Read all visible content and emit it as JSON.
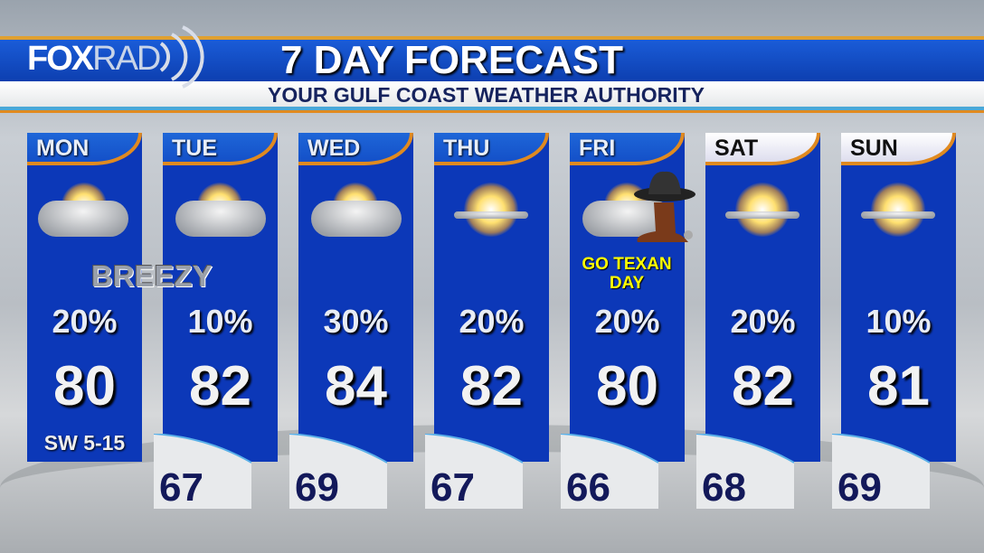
{
  "header": {
    "logo": {
      "fox": "FOX",
      "rad": "RAD"
    },
    "title": "7 DAY FORECAST",
    "subtitle": "YOUR GULF COAST WEATHER AUTHORITY"
  },
  "days": [
    {
      "day": "MON",
      "precip": "20%",
      "high": "80",
      "low": null,
      "wind": "SW 5-15",
      "icon": "mostly-cloudy",
      "note": "BREEZY"
    },
    {
      "day": "TUE",
      "precip": "10%",
      "high": "82",
      "low": "67",
      "icon": "partly-cloudy"
    },
    {
      "day": "WED",
      "precip": "30%",
      "high": "84",
      "low": "69",
      "icon": "partly-cloudy"
    },
    {
      "day": "THU",
      "precip": "20%",
      "high": "82",
      "low": "67",
      "icon": "mostly-sunny"
    },
    {
      "day": "FRI",
      "precip": "20%",
      "high": "80",
      "low": "66",
      "icon": "partly-cloudy",
      "note": "GO TEXAN DAY",
      "extra_icon": "cowboy-boot-hat"
    },
    {
      "day": "SAT",
      "precip": "20%",
      "high": "82",
      "low": "68",
      "icon": "mostly-sunny"
    },
    {
      "day": "SUN",
      "precip": "10%",
      "high": "81",
      "low": "69",
      "icon": "mostly-sunny"
    }
  ],
  "colors": {
    "panel": "#0c38b8",
    "accent": "#e08a20",
    "note": "#ffff00"
  }
}
